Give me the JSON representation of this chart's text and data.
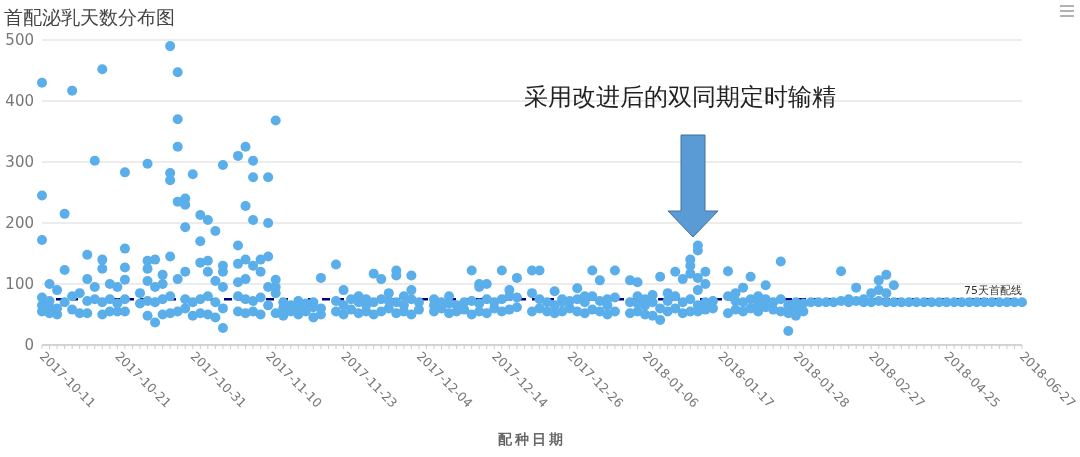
{
  "chart_data": {
    "type": "scatter",
    "title": "首配泌乳天数分布图",
    "xlabel": "配种日期",
    "categories": [
      "2017-10-11",
      null,
      null,
      null,
      null,
      null,
      null,
      null,
      null,
      null,
      "2017-10-21",
      null,
      null,
      null,
      null,
      null,
      null,
      null,
      null,
      null,
      "2017-10-31",
      null,
      null,
      null,
      null,
      null,
      null,
      null,
      null,
      null,
      "2017-11-10",
      null,
      null,
      null,
      null,
      null,
      null,
      null,
      null,
      null,
      "2017-11-23",
      null,
      null,
      null,
      null,
      null,
      null,
      null,
      null,
      null,
      "2017-12-04",
      null,
      null,
      null,
      null,
      null,
      null,
      null,
      null,
      null,
      "2017-12-14",
      null,
      null,
      null,
      null,
      null,
      null,
      null,
      null,
      null,
      "2017-12-26",
      null,
      null,
      null,
      null,
      null,
      null,
      null,
      null,
      null,
      "2018-01-06",
      null,
      null,
      null,
      null,
      null,
      null,
      null,
      null,
      null,
      "2018-01-17",
      null,
      null,
      null,
      null,
      null,
      null,
      null,
      null,
      null,
      "2018-01-28",
      null,
      null,
      null,
      null,
      null,
      null,
      null,
      null,
      null,
      "2018-02-27",
      null,
      null,
      null,
      null,
      null,
      null,
      null,
      null,
      null,
      "2018-04-25",
      null,
      null,
      null,
      null,
      null,
      null,
      null,
      null,
      null,
      "2018-06-27"
    ],
    "series": [
      {
        "color": "#5aaeea",
        "values": [
          55,
          52,
          50,
          70,
          58,
          52,
          52,
          75,
          50,
          55,
          55,
          55,
          null,
          68,
          48,
          37,
          50,
          52,
          55,
          60,
          48,
          52,
          50,
          45,
          28,
          null,
          55,
          52,
          55,
          50,
          65,
          52,
          48,
          55,
          50,
          55,
          45,
          50,
          null,
          55,
          50,
          58,
          52,
          55,
          50,
          55,
          60,
          52,
          55,
          50,
          58,
          null,
          55,
          60,
          52,
          55,
          58,
          50,
          55,
          52,
          60,
          55,
          58,
          62,
          null,
          55,
          60,
          55,
          52,
          55,
          60,
          55,
          52,
          58,
          55,
          50,
          55,
          null,
          52,
          55,
          50,
          48,
          41,
          55,
          60,
          52,
          55,
          55,
          58,
          60,
          null,
          52,
          58,
          55,
          60,
          55,
          62,
          58,
          55,
          23,
          48,
          55,
          70,
          70,
          70,
          70,
          72,
          70,
          72,
          70,
          70,
          72,
          70,
          70,
          70,
          70,
          70,
          70,
          70,
          70,
          70,
          70,
          70,
          70,
          70,
          70,
          70,
          70,
          70,
          70,
          70
        ]
      },
      {
        "color": "#5aaeea",
        "values": [
          65,
          62,
          60,
          123,
          80,
          85,
          72,
          95,
          70,
          75,
          68,
          75,
          null,
          85,
          72,
          70,
          75,
          80,
          108,
          75,
          70,
          75,
          80,
          70,
          60,
          null,
          80,
          75,
          72,
          78,
          95,
          85,
          60,
          65,
          62,
          68,
          62,
          60,
          null,
          72,
          65,
          75,
          70,
          65,
          70,
          75,
          72,
          70,
          65,
          75,
          70,
          null,
          65,
          70,
          68,
          65,
          70,
          72,
          68,
          75,
          70,
          75,
          80,
          78,
          null,
          85,
          75,
          70,
          65,
          70,
          72,
          75,
          70,
          80,
          72,
          65,
          78,
          null,
          70,
          68,
          65,
          70,
          60,
          72,
          80,
          70,
          75,
          65,
          70,
          72,
          null,
          80,
          72,
          70,
          75,
          68,
          75,
          70,
          75,
          52,
          60,
          68,
          null,
          null,
          null,
          null,
          121,
          75,
          94,
          75,
          85,
          90,
          85,
          null,
          null,
          null,
          null,
          null,
          null,
          null,
          null,
          null,
          null,
          null,
          null,
          null,
          null,
          null,
          null,
          null,
          null
        ]
      },
      {
        "color": "#5aaeea",
        "values": [
          78,
          72,
          90,
          215,
          417,
          null,
          108,
          302,
          125,
          100,
          95,
          107,
          null,
          null,
          105,
          95,
          100,
          145,
          235,
          120,
          280,
          135,
          120,
          105,
          95,
          null,
          103,
          108,
          130,
          120,
          145,
          95,
          70,
          null,
          72,
          null,
          70,
          110,
          null,
          132,
          90,
          null,
          80,
          75,
          117,
          108,
          85,
          114,
          80,
          90,
          null,
          null,
          75,
          null,
          80,
          null,
          null,
          122,
          95,
          100,
          null,
          122,
          90,
          110,
          null,
          122,
          122,
          null,
          88,
          75,
          null,
          93,
          80,
          122,
          106,
          75,
          122,
          null,
          106,
          80,
          75,
          82,
          112,
          85,
          120,
          108,
          117,
          90,
          100,
          null,
          null,
          121,
          85,
          94,
          112,
          80,
          98,
          null,
          137,
          65,
          70,
          null,
          null,
          null,
          null,
          null,
          null,
          null,
          null,
          null,
          null,
          106,
          115,
          98,
          null,
          null,
          null,
          null,
          null,
          null,
          null,
          null,
          null,
          null,
          null,
          null,
          null,
          null,
          null,
          null,
          null
        ]
      },
      {
        "color": "#5aaeea",
        "values": [
          172,
          100,
          null,
          null,
          null,
          null,
          148,
          null,
          140,
          null,
          null,
          127,
          null,
          null,
          125,
          140,
          115,
          270,
          325,
          193,
          null,
          170,
          138,
          187,
          120,
          null,
          133,
          140,
          205,
          140,
          200,
          107,
          null,
          null,
          null,
          null,
          null,
          null,
          null,
          null,
          null,
          null,
          null,
          null,
          null,
          null,
          null,
          122,
          null,
          114,
          null,
          null,
          null,
          null,
          null,
          null,
          null,
          null,
          100,
          null,
          null,
          null,
          null,
          null,
          null,
          null,
          null,
          null,
          null,
          null,
          null,
          null,
          null,
          null,
          null,
          null,
          null,
          null,
          null,
          103,
          null,
          null,
          null,
          null,
          null,
          null,
          130,
          110,
          120,
          null,
          null,
          null,
          null,
          null,
          null,
          null,
          null,
          null,
          null,
          null,
          null,
          null,
          null,
          null,
          null,
          null,
          null,
          null,
          null,
          null,
          null,
          null,
          null,
          null,
          null,
          null,
          null,
          null,
          null,
          null,
          null,
          null,
          null,
          null,
          null,
          null,
          null,
          null,
          null,
          null,
          null
        ]
      },
      {
        "color": "#5aaeea",
        "values": [
          245,
          null,
          null,
          null,
          null,
          null,
          null,
          null,
          452,
          null,
          null,
          158,
          null,
          null,
          138,
          null,
          null,
          282,
          370,
          230,
          null,
          213,
          205,
          null,
          130,
          null,
          163,
          228,
          275,
          null,
          275,
          368,
          null,
          null,
          null,
          null,
          null,
          null,
          null,
          null,
          null,
          null,
          null,
          null,
          null,
          null,
          null,
          null,
          null,
          null,
          null,
          null,
          null,
          null,
          null,
          null,
          null,
          null,
          null,
          null,
          null,
          null,
          null,
          null,
          null,
          null,
          null,
          null,
          null,
          null,
          null,
          null,
          null,
          null,
          null,
          null,
          null,
          null,
          null,
          null,
          null,
          null,
          null,
          null,
          null,
          null,
          140,
          155,
          null,
          null,
          null,
          null,
          null,
          null,
          null,
          null,
          null,
          null,
          null,
          null,
          null,
          null,
          null,
          null,
          null,
          null,
          null,
          null,
          null,
          null,
          null,
          null,
          null,
          null,
          null,
          null,
          null,
          null,
          null,
          null,
          null,
          null,
          null,
          null,
          null,
          null,
          null,
          null,
          null,
          null,
          null
        ]
      },
      {
        "color": "#5aaeea",
        "values": [
          430,
          null,
          null,
          null,
          null,
          null,
          null,
          null,
          null,
          null,
          null,
          283,
          null,
          null,
          297,
          null,
          null,
          490,
          447,
          240,
          null,
          null,
          null,
          null,
          295,
          null,
          310,
          325,
          302,
          null,
          null,
          null,
          null,
          null,
          null,
          null,
          null,
          null,
          null,
          null,
          null,
          null,
          null,
          null,
          null,
          null,
          null,
          null,
          null,
          null,
          null,
          null,
          null,
          null,
          null,
          null,
          null,
          null,
          null,
          null,
          null,
          null,
          null,
          null,
          null,
          null,
          null,
          null,
          null,
          null,
          null,
          null,
          null,
          null,
          null,
          null,
          null,
          null,
          null,
          null,
          null,
          null,
          null,
          null,
          null,
          null,
          null,
          163,
          null,
          null,
          null,
          null,
          null,
          null,
          null,
          null,
          null,
          null,
          null,
          null,
          null,
          null,
          null,
          null,
          null,
          null,
          null,
          null,
          null,
          null,
          null,
          null,
          null,
          null,
          null,
          null,
          null,
          null,
          null,
          null,
          null,
          null,
          null,
          null,
          null,
          null,
          null,
          null,
          null,
          null,
          null
        ]
      }
    ],
    "ylim": [
      0,
      500
    ],
    "yticks": [
      0,
      100,
      200,
      300,
      400,
      500
    ],
    "grid": "y",
    "marker": "circle",
    "ref_lines": [
      {
        "axis": "y",
        "value": 75,
        "label": "75天首配线",
        "color": "#00007f",
        "line_style": "dashed"
      }
    ],
    "annotations": [
      "采用改进后的双同期定时输精"
    ]
  }
}
